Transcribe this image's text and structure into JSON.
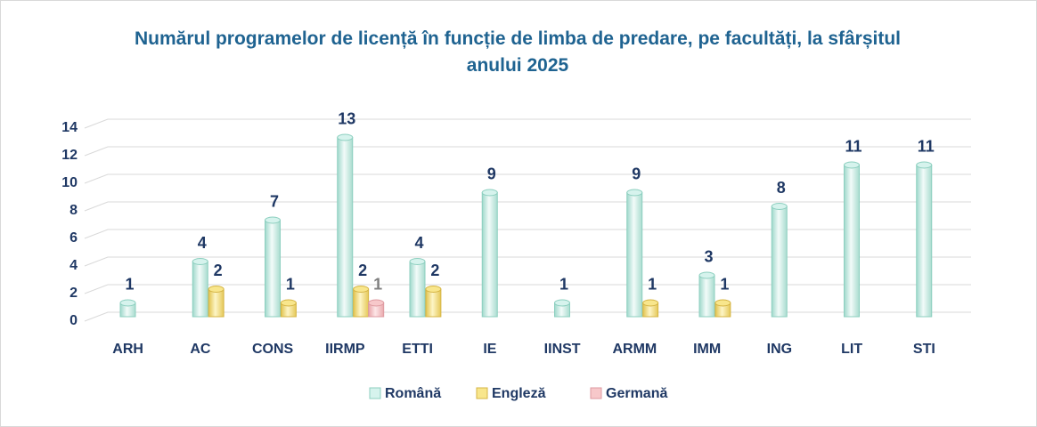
{
  "chart_data": {
    "type": "bar3d",
    "title": "Numărul programelor de licență în funcție de limba de predare, pe facultăți, la sfârșitul anului 2025",
    "categories": [
      "ARH",
      "AC",
      "CONS",
      "IIRMP",
      "ETTI",
      "IE",
      "IINST",
      "ARMM",
      "IMM",
      "ING",
      "LIT",
      "STI"
    ],
    "series": [
      {
        "name": "Română",
        "color": "#d6f3ed",
        "values": [
          1,
          4,
          7,
          13,
          4,
          9,
          1,
          9,
          3,
          8,
          11,
          11
        ]
      },
      {
        "name": "Engleză",
        "color": "#f8e68c",
        "values": [
          null,
          2,
          1,
          2,
          2,
          null,
          null,
          1,
          1,
          null,
          null,
          null
        ]
      },
      {
        "name": "Germană",
        "color": "#f7c8ca",
        "values": [
          null,
          null,
          null,
          1,
          null,
          null,
          null,
          null,
          null,
          null,
          null,
          null
        ]
      }
    ],
    "ylim": [
      0,
      14
    ],
    "yticks": [
      0,
      2,
      4,
      6,
      8,
      10,
      12,
      14
    ],
    "grid": true,
    "legend": "bottom"
  }
}
